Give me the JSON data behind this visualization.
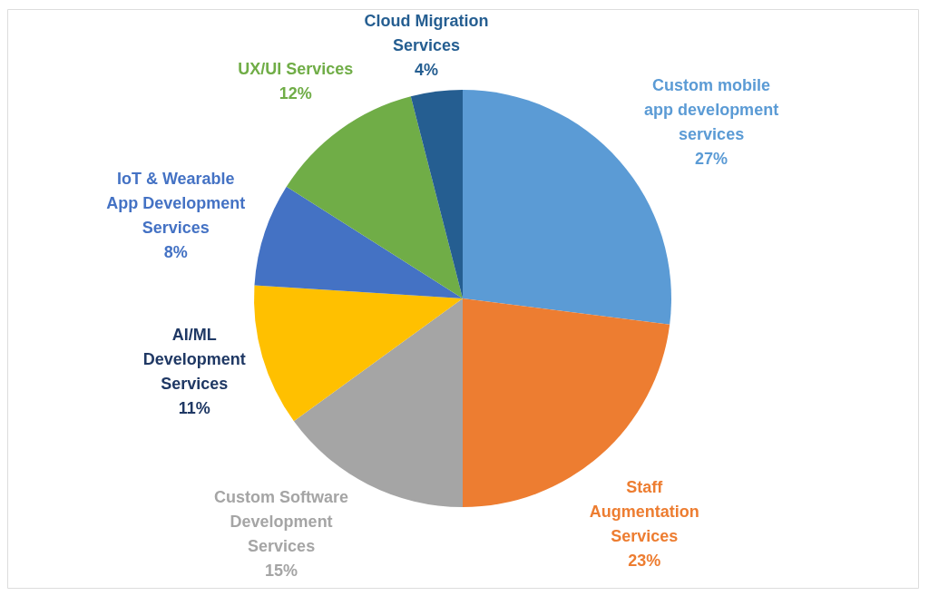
{
  "chart_data": {
    "type": "pie",
    "categories": [
      "Custom mobile app development services",
      "Staff Augmentation Services",
      "Custom Software Development Services",
      "AI/ML Development Services",
      "IoT & Wearable App Development Services",
      "UX/UI Services",
      "Cloud Migration Services"
    ],
    "values": [
      27,
      23,
      15,
      11,
      8,
      12,
      4
    ],
    "colors": [
      "#5b9bd5",
      "#ed7d31",
      "#a5a5a5",
      "#ffc000",
      "#4472c4",
      "#70ad47",
      "#255e91"
    ],
    "value_labels": [
      "27%",
      "23%",
      "15%",
      "11%",
      "8%",
      "12%",
      "4%"
    ]
  }
}
